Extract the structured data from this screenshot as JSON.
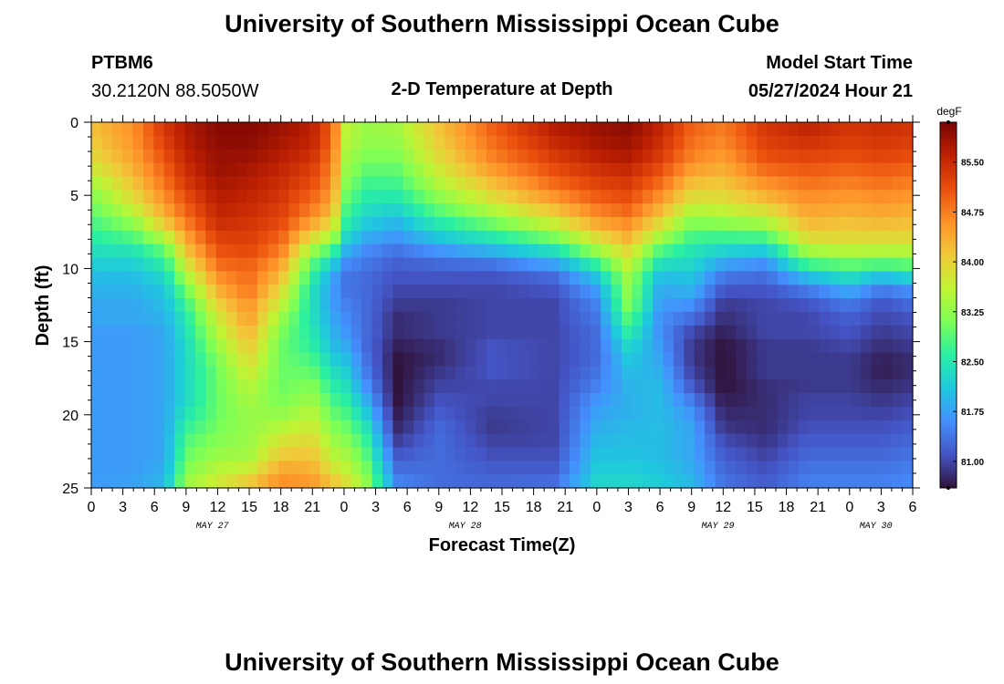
{
  "page": {
    "title_top": "University of Southern Mississippi Ocean Cube",
    "title_bottom": "University of Southern Mississippi Ocean Cube",
    "station_id": "PTBM6",
    "station_coords": "30.2120N  88.5050W",
    "plot_title": "2-D Temperature at Depth",
    "model_label": "Model Start Time",
    "model_time": "05/27/2024 Hour 21"
  },
  "chart_data": {
    "type": "heatmap",
    "title": "2-D Temperature at Depth",
    "xlabel": "Forecast Time(Z)",
    "ylabel": "Depth (ft)",
    "x_range_hours": [
      0,
      78
    ],
    "x_tick_hours": [
      0,
      3,
      6,
      9,
      12,
      15,
      18,
      21,
      24,
      27,
      30,
      33,
      36,
      39,
      42,
      45,
      48,
      51,
      54,
      57,
      60,
      63,
      66,
      69,
      72,
      75,
      78
    ],
    "x_tick_labels": [
      "0",
      "3",
      "6",
      "9",
      "12",
      "15",
      "18",
      "21",
      "0",
      "3",
      "6",
      "9",
      "12",
      "15",
      "18",
      "21",
      "0",
      "3",
      "6",
      "9",
      "12",
      "15",
      "18",
      "21",
      "0",
      "3",
      "6"
    ],
    "date_labels": [
      {
        "label": "MAY 27",
        "hour": 11.5
      },
      {
        "label": "MAY 28",
        "hour": 35.5
      },
      {
        "label": "MAY 29",
        "hour": 59.5
      },
      {
        "label": "MAY 30",
        "hour": 74.5
      }
    ],
    "y_range_ft": [
      0,
      25
    ],
    "y_ticks": [
      0,
      5,
      10,
      15,
      20,
      25
    ],
    "y_tick_labels": [
      "0",
      "5",
      "10",
      "15",
      "20",
      "25"
    ],
    "colorbar": {
      "unit": "degF",
      "range": [
        80.6,
        86.1
      ],
      "tick_values": [
        81.0,
        81.75,
        82.5,
        83.25,
        84.0,
        84.75,
        85.5
      ],
      "tick_labels": [
        "81.00",
        "81.75",
        "82.50",
        "83.25",
        "84.00",
        "84.75",
        "85.50"
      ],
      "stops": [
        "#30123b",
        "#4454c4",
        "#4490fe",
        "#1fc8de",
        "#29efa2",
        "#7dff56",
        "#c1f334",
        "#f1ca3a",
        "#fe922a",
        "#ea4f0d",
        "#be2102",
        "#7a0403"
      ]
    },
    "nx": 79,
    "ny": 27,
    "columns_by_hour": [
      [
        0,
        [
          84.2,
          84.1,
          84.0,
          83.8,
          83.5,
          83.2,
          83.0,
          82.8,
          82.6,
          82.4,
          82.2,
          82.0,
          81.9,
          81.8,
          81.8,
          81.7,
          81.7,
          81.7,
          81.7,
          81.7,
          81.7,
          81.7,
          81.7,
          81.7,
          81.7,
          81.7,
          81.7
        ]
      ],
      [
        4,
        [
          84.6,
          84.6,
          84.5,
          84.4,
          84.2,
          84.0,
          83.7,
          83.3,
          82.9,
          82.5,
          82.2,
          82.0,
          81.9,
          81.8,
          81.8,
          81.7,
          81.7,
          81.7,
          81.7,
          81.7,
          81.7,
          81.7,
          81.7,
          81.7,
          81.7,
          81.7,
          81.8
        ]
      ],
      [
        7,
        [
          85.4,
          85.3,
          85.2,
          85.0,
          84.9,
          84.7,
          84.5,
          84.2,
          83.6,
          83.0,
          82.6,
          82.3,
          82.1,
          82.0,
          81.9,
          81.8,
          81.8,
          81.8,
          81.8,
          81.8,
          81.8,
          81.8,
          81.8,
          81.8,
          81.8,
          81.9,
          82.0
        ]
      ],
      [
        9,
        [
          85.7,
          85.7,
          85.6,
          85.5,
          85.4,
          85.2,
          85.0,
          84.8,
          84.5,
          84.2,
          83.8,
          83.4,
          83.0,
          82.7,
          82.5,
          82.4,
          82.3,
          82.3,
          82.3,
          82.3,
          82.3,
          82.5,
          82.7,
          82.9,
          83.0,
          83.2,
          83.4
        ]
      ],
      [
        12,
        [
          86.0,
          86.0,
          85.9,
          85.9,
          85.8,
          85.7,
          85.6,
          85.5,
          85.3,
          85.1,
          84.9,
          84.6,
          84.3,
          84.0,
          83.7,
          83.5,
          83.3,
          83.1,
          83.0,
          83.0,
          83.0,
          83.0,
          83.1,
          83.2,
          83.4,
          83.6,
          83.8
        ]
      ],
      [
        15,
        [
          86.0,
          86.0,
          85.9,
          85.8,
          85.7,
          85.6,
          85.5,
          85.4,
          85.3,
          85.2,
          85.0,
          84.9,
          84.8,
          84.6,
          84.5,
          84.3,
          84.1,
          83.9,
          83.7,
          83.5,
          83.4,
          83.3,
          83.3,
          83.3,
          83.4,
          83.8,
          84.3
        ]
      ],
      [
        18,
        [
          85.9,
          85.8,
          85.7,
          85.6,
          85.5,
          85.4,
          85.3,
          85.2,
          85.0,
          84.8,
          84.5,
          84.2,
          83.9,
          83.6,
          83.3,
          83.1,
          83.0,
          83.0,
          83.0,
          83.0,
          83.1,
          83.3,
          83.6,
          83.9,
          84.2,
          84.5,
          84.7
        ]
      ],
      [
        21,
        [
          85.6,
          85.6,
          85.5,
          85.3,
          85.2,
          85.0,
          84.8,
          84.5,
          84.0,
          83.4,
          82.9,
          82.6,
          82.4,
          82.4,
          82.4,
          82.5,
          82.6,
          82.8,
          83.0,
          83.2,
          83.4,
          83.6,
          83.8,
          84.0,
          84.2,
          84.4,
          84.6
        ]
      ],
      [
        23,
        [
          84.9,
          84.9,
          84.8,
          84.7,
          84.6,
          84.5,
          84.3,
          84.0,
          83.5,
          82.8,
          82.2,
          81.8,
          81.7,
          81.7,
          81.8,
          81.9,
          82.0,
          82.2,
          82.4,
          82.6,
          82.8,
          83.0,
          83.2,
          83.4,
          83.6,
          83.9,
          84.3
        ]
      ],
      [
        24,
        [
          83.6,
          83.6,
          83.5,
          83.4,
          83.3,
          83.1,
          82.9,
          82.7,
          82.4,
          82.0,
          81.6,
          81.4,
          81.4,
          81.5,
          81.6,
          81.7,
          81.9,
          82.1,
          82.3,
          82.5,
          82.7,
          82.9,
          83.1,
          83.3,
          83.5,
          83.7,
          84.0
        ]
      ],
      [
        26,
        [
          83.3,
          83.3,
          83.2,
          83.0,
          82.8,
          82.6,
          82.4,
          82.2,
          81.9,
          81.6,
          81.4,
          81.3,
          81.3,
          81.3,
          81.3,
          81.3,
          81.3,
          81.4,
          81.5,
          81.7,
          82.0,
          82.3,
          82.6,
          82.8,
          83.0,
          83.2,
          83.4
        ]
      ],
      [
        29,
        [
          83.4,
          83.3,
          83.2,
          83.0,
          82.8,
          82.6,
          82.3,
          82.0,
          81.7,
          81.4,
          81.2,
          81.1,
          81.0,
          80.9,
          80.8,
          80.8,
          80.7,
          80.6,
          80.6,
          80.6,
          80.6,
          80.7,
          80.8,
          81.0,
          81.2,
          81.4,
          81.6
        ]
      ],
      [
        33,
        [
          84.2,
          84.1,
          84.0,
          83.8,
          83.6,
          83.3,
          83.0,
          82.6,
          82.2,
          81.7,
          81.3,
          81.1,
          81.0,
          80.9,
          80.9,
          80.9,
          80.8,
          80.8,
          80.9,
          81.0,
          81.1,
          81.2,
          81.3,
          81.3,
          81.3,
          81.3,
          81.3
        ]
      ],
      [
        38,
        [
          85.0,
          84.9,
          84.8,
          84.6,
          84.3,
          84.0,
          83.6,
          83.1,
          82.6,
          82.0,
          81.4,
          81.1,
          81.0,
          81.0,
          81.0,
          81.0,
          81.1,
          81.1,
          81.1,
          81.0,
          81.0,
          80.9,
          80.9,
          81.0,
          81.1,
          81.2,
          81.3
        ]
      ],
      [
        44,
        [
          85.7,
          85.6,
          85.4,
          85.2,
          85.0,
          84.7,
          84.3,
          83.8,
          83.2,
          82.5,
          81.8,
          81.3,
          81.1,
          81.0,
          81.0,
          81.0,
          81.0,
          81.0,
          81.0,
          81.0,
          81.0,
          81.0,
          81.0,
          81.0,
          81.1,
          81.2,
          81.4
        ]
      ],
      [
        48,
        [
          85.9,
          85.8,
          85.7,
          85.5,
          85.3,
          85.1,
          84.8,
          84.5,
          84.0,
          83.4,
          82.7,
          82.1,
          81.7,
          81.5,
          81.4,
          81.3,
          81.3,
          81.3,
          81.4,
          81.5,
          81.7,
          81.8,
          81.9,
          82.0,
          82.1,
          82.2,
          82.3
        ]
      ],
      [
        51,
        [
          86.0,
          85.9,
          85.8,
          85.6,
          85.4,
          85.2,
          85.0,
          84.7,
          84.4,
          84.0,
          83.7,
          83.4,
          83.3,
          83.2,
          82.9,
          82.6,
          82.3,
          82.1,
          82.0,
          81.9,
          81.9,
          81.9,
          82.0,
          82.0,
          82.1,
          82.2,
          82.3
        ]
      ],
      [
        54,
        [
          85.6,
          85.5,
          85.4,
          85.2,
          85.0,
          84.7,
          84.4,
          84.0,
          83.5,
          82.9,
          82.4,
          82.0,
          81.8,
          81.7,
          81.6,
          81.6,
          81.7,
          81.8,
          81.9,
          82.0,
          82.0,
          82.0,
          82.0,
          82.0,
          82.0,
          82.1,
          82.2
        ]
      ],
      [
        57,
        [
          85.0,
          84.9,
          84.8,
          84.6,
          84.3,
          84.0,
          83.6,
          83.2,
          82.8,
          82.5,
          82.3,
          82.1,
          81.9,
          81.6,
          81.3,
          81.0,
          80.9,
          80.9,
          81.0,
          81.2,
          81.5,
          81.7,
          81.8,
          81.8,
          81.8,
          81.9,
          82.0
        ]
      ],
      [
        60,
        [
          84.8,
          84.7,
          84.6,
          84.4,
          84.2,
          84.0,
          83.7,
          83.3,
          82.8,
          82.3,
          81.8,
          81.4,
          81.1,
          80.9,
          80.8,
          80.7,
          80.6,
          80.6,
          80.6,
          80.6,
          80.7,
          80.8,
          80.9,
          81.1,
          81.2,
          81.3,
          81.4
        ]
      ],
      [
        64,
        [
          85.4,
          85.3,
          85.2,
          85.0,
          84.7,
          84.4,
          84.0,
          83.5,
          82.9,
          82.2,
          81.6,
          81.3,
          81.1,
          81.0,
          81.0,
          81.0,
          80.9,
          80.9,
          80.9,
          80.8,
          80.8,
          80.8,
          80.8,
          80.9,
          81.0,
          81.1,
          81.2
        ]
      ],
      [
        68,
        [
          85.6,
          85.5,
          85.3,
          85.1,
          84.9,
          84.7,
          84.5,
          84.3,
          84.0,
          83.5,
          82.8,
          82.0,
          81.4,
          81.1,
          81.0,
          81.0,
          80.9,
          80.9,
          80.9,
          80.9,
          81.0,
          81.0,
          81.1,
          81.2,
          81.3,
          81.4,
          81.5
        ]
      ],
      [
        72,
        [
          85.4,
          85.3,
          85.2,
          85.0,
          84.8,
          84.6,
          84.4,
          84.2,
          84.0,
          83.6,
          83.0,
          82.4,
          81.8,
          81.4,
          81.2,
          81.1,
          81.0,
          80.9,
          80.9,
          80.9,
          81.0,
          81.0,
          81.1,
          81.2,
          81.3,
          81.4,
          81.5
        ]
      ],
      [
        75,
        [
          85.5,
          85.4,
          85.3,
          85.1,
          84.9,
          84.7,
          84.5,
          84.3,
          84.0,
          83.6,
          82.9,
          82.0,
          81.4,
          81.1,
          81.0,
          80.9,
          80.8,
          80.7,
          80.7,
          80.8,
          80.9,
          81.0,
          81.1,
          81.2,
          81.3,
          81.4,
          81.5
        ]
      ],
      [
        78,
        [
          85.4,
          85.3,
          85.2,
          85.0,
          84.8,
          84.6,
          84.4,
          84.2,
          84.0,
          83.6,
          83.0,
          82.3,
          81.6,
          81.3,
          81.1,
          81.0,
          80.9,
          80.8,
          80.8,
          80.9,
          81.0,
          81.1,
          81.2,
          81.3,
          81.4,
          81.5,
          81.6
        ]
      ]
    ]
  }
}
